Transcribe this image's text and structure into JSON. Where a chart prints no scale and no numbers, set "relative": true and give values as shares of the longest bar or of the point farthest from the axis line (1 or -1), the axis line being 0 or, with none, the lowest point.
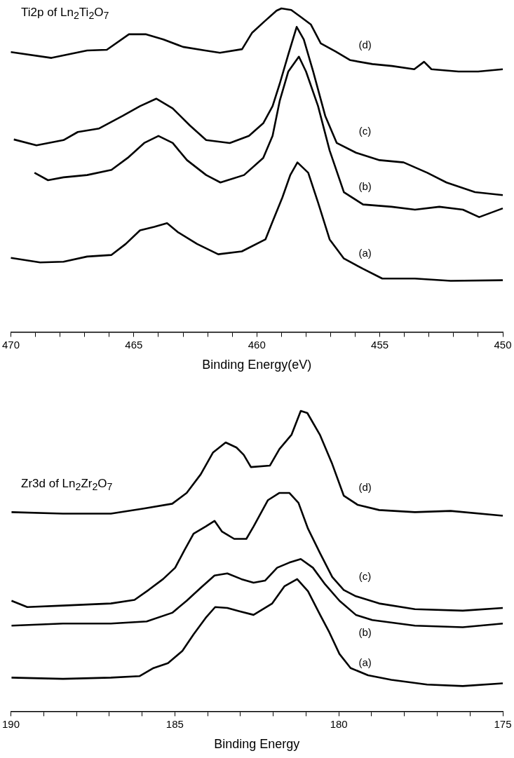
{
  "chart_data": [
    {
      "type": "line",
      "title": "Ti2p of Ln$_{2}$Ti$_{2}$O$_{7}$",
      "xlabel": "Binding Energy(eV)",
      "relative": true,
      "legend": false,
      "grid": false,
      "tick_labels": "x",
      "marker": "none",
      "line_style": "solid",
      "xlim": [
        470,
        450
      ],
      "xticks": [
        470,
        {
          "value": 469,
          "label": null
        },
        {
          "value": 468,
          "label": null
        },
        {
          "value": 467,
          "label": null
        },
        {
          "value": 466,
          "label": null
        },
        465,
        {
          "value": 464,
          "label": null
        },
        {
          "value": 463,
          "label": null
        },
        {
          "value": 462,
          "label": null
        },
        {
          "value": 461,
          "label": null
        },
        460,
        {
          "value": 459,
          "label": null
        },
        {
          "value": 458,
          "label": null
        },
        {
          "value": 457,
          "label": null
        },
        {
          "value": 456,
          "label": null
        },
        455,
        {
          "value": 454,
          "label": null
        },
        {
          "value": 453,
          "label": null
        },
        {
          "value": 452,
          "label": null
        },
        {
          "value": 451,
          "label": null
        },
        450
      ],
      "series": [
        {
          "name": "(d)",
          "color": "#000000",
          "x": [
            470,
            468.35,
            466.9,
            466.1,
            465.2,
            464.5,
            463.8,
            463.0,
            462.1,
            461.5,
            460.6,
            460.2,
            459.7,
            459.2,
            459.0,
            458.6,
            458.2,
            457.8,
            457.4,
            456.8,
            456.2,
            455.3,
            454.5,
            453.6,
            453.2,
            452.9,
            451.8,
            451.0,
            450.0
          ],
          "values": [
            0.865,
            0.847,
            0.87,
            0.872,
            0.92,
            0.92,
            0.904,
            0.881,
            0.87,
            0.863,
            0.874,
            0.924,
            0.959,
            0.993,
            1.0,
            0.995,
            0.973,
            0.95,
            0.892,
            0.867,
            0.84,
            0.828,
            0.822,
            0.812,
            0.835,
            0.812,
            0.805,
            0.805,
            0.812
          ]
        },
        {
          "name": "(c)",
          "color": "#000000",
          "x": [
            469.88,
            468.96,
            467.86,
            467.28,
            466.41,
            465.45,
            464.75,
            464.09,
            463.42,
            462.72,
            462.06,
            461.1,
            460.32,
            459.74,
            459.36,
            459.07,
            458.72,
            458.38,
            458.09,
            457.71,
            457.22,
            456.75,
            455.97,
            455.01,
            454.03,
            453.07,
            452.29,
            451.13,
            450.0
          ],
          "values": [
            0.595,
            0.577,
            0.593,
            0.618,
            0.629,
            0.668,
            0.698,
            0.721,
            0.691,
            0.638,
            0.593,
            0.584,
            0.606,
            0.645,
            0.698,
            0.767,
            0.858,
            0.943,
            0.904,
            0.805,
            0.668,
            0.584,
            0.554,
            0.531,
            0.524,
            0.492,
            0.462,
            0.432,
            0.423
          ]
        },
        {
          "name": "(b)",
          "color": "#000000",
          "x": [
            469.04,
            468.49,
            467.86,
            466.9,
            465.91,
            465.25,
            464.58,
            464.0,
            463.42,
            462.84,
            462.06,
            461.48,
            460.52,
            459.74,
            459.36,
            459.07,
            458.72,
            458.29,
            458.0,
            457.51,
            457.04,
            456.46,
            455.68,
            454.52,
            453.57,
            452.58,
            451.62,
            450.96,
            450.0
          ],
          "values": [
            0.492,
            0.469,
            0.478,
            0.485,
            0.501,
            0.538,
            0.584,
            0.606,
            0.584,
            0.531,
            0.485,
            0.462,
            0.485,
            0.538,
            0.606,
            0.714,
            0.805,
            0.851,
            0.805,
            0.698,
            0.561,
            0.432,
            0.394,
            0.387,
            0.378,
            0.387,
            0.378,
            0.355,
            0.382
          ]
        },
        {
          "name": "(a)",
          "color": "#000000",
          "x": [
            470,
            468.81,
            467.86,
            466.9,
            465.91,
            465.33,
            464.75,
            464.17,
            463.65,
            463.22,
            462.43,
            461.57,
            460.61,
            459.65,
            459.36,
            458.96,
            458.64,
            458.35,
            457.91,
            457.51,
            457.04,
            456.46,
            455.68,
            454.9,
            453.57,
            452.12,
            450.0
          ],
          "values": [
            0.229,
            0.215,
            0.217,
            0.233,
            0.238,
            0.272,
            0.314,
            0.325,
            0.336,
            0.309,
            0.272,
            0.24,
            0.249,
            0.286,
            0.341,
            0.416,
            0.485,
            0.524,
            0.492,
            0.4,
            0.286,
            0.227,
            0.195,
            0.165,
            0.165,
            0.158,
            0.16
          ]
        }
      ]
    },
    {
      "type": "line",
      "title": "Zr3d of Ln$_{2}$Zr$_{2}$O$_{7}$",
      "xlabel": "Binding Energy",
      "relative": true,
      "legend": false,
      "grid": false,
      "tick_labels": "x",
      "marker": "none",
      "line_style": "solid",
      "xlim": [
        190,
        175
      ],
      "xticks": [
        190,
        {
          "value": 189,
          "label": null
        },
        {
          "value": 188,
          "label": null
        },
        {
          "value": 187,
          "label": null
        },
        {
          "value": 186,
          "label": null
        },
        185,
        {
          "value": 184,
          "label": null
        },
        {
          "value": 183,
          "label": null
        },
        {
          "value": 182,
          "label": null
        },
        {
          "value": 181,
          "label": null
        },
        180,
        {
          "value": 179,
          "label": null
        },
        {
          "value": 178,
          "label": null
        },
        {
          "value": 177,
          "label": null
        },
        {
          "value": 176,
          "label": null
        },
        175
      ],
      "series": [
        {
          "name": "(d)",
          "color": "#000000",
          "x": [
            189.98,
            188.41,
            186.95,
            185.95,
            185.08,
            184.64,
            184.21,
            183.84,
            183.45,
            183.12,
            182.9,
            182.68,
            182.1,
            181.81,
            181.44,
            181.16,
            180.96,
            180.57,
            180.2,
            179.85,
            179.42,
            178.77,
            177.68,
            176.59,
            175.0
          ],
          "values": [
            0.663,
            0.658,
            0.658,
            0.675,
            0.691,
            0.727,
            0.789,
            0.861,
            0.895,
            0.878,
            0.854,
            0.813,
            0.818,
            0.873,
            0.921,
            1.0,
            0.993,
            0.919,
            0.823,
            0.718,
            0.687,
            0.67,
            0.663,
            0.667,
            0.651
          ]
        },
        {
          "name": "(c)",
          "color": "#000000",
          "x": [
            189.98,
            189.5,
            188.41,
            186.95,
            186.23,
            185.8,
            185.36,
            184.99,
            184.71,
            184.43,
            184.06,
            183.79,
            183.56,
            183.19,
            182.82,
            182.6,
            182.16,
            181.81,
            181.51,
            181.23,
            180.94,
            180.57,
            180.2,
            179.85,
            179.48,
            178.77,
            177.68,
            176.22,
            175.0
          ],
          "values": [
            0.368,
            0.347,
            0.352,
            0.359,
            0.371,
            0.404,
            0.44,
            0.478,
            0.536,
            0.591,
            0.615,
            0.634,
            0.598,
            0.574,
            0.574,
            0.615,
            0.703,
            0.727,
            0.727,
            0.694,
            0.608,
            0.526,
            0.447,
            0.404,
            0.383,
            0.359,
            0.34,
            0.335,
            0.344
          ]
        },
        {
          "name": "(b)",
          "color": "#000000",
          "x": [
            189.98,
            188.41,
            186.95,
            185.86,
            185.08,
            184.64,
            184.21,
            183.79,
            183.4,
            182.97,
            182.6,
            182.25,
            181.88,
            181.51,
            181.16,
            180.79,
            180.42,
            179.98,
            179.48,
            178.98,
            177.68,
            176.22,
            175.0
          ],
          "values": [
            0.285,
            0.292,
            0.292,
            0.299,
            0.328,
            0.368,
            0.411,
            0.452,
            0.459,
            0.44,
            0.428,
            0.435,
            0.478,
            0.495,
            0.507,
            0.478,
            0.423,
            0.368,
            0.321,
            0.304,
            0.285,
            0.28,
            0.292
          ]
        },
        {
          "name": "(a)",
          "color": "#000000",
          "x": [
            189.98,
            188.41,
            186.95,
            186.08,
            185.65,
            185.21,
            184.77,
            184.43,
            184.06,
            183.77,
            183.4,
            183.03,
            182.6,
            182.03,
            181.66,
            181.27,
            180.94,
            180.57,
            180.29,
            179.98,
            179.64,
            179.11,
            178.4,
            177.31,
            176.22,
            175.0
          ],
          "values": [
            0.112,
            0.108,
            0.112,
            0.117,
            0.144,
            0.16,
            0.201,
            0.256,
            0.311,
            0.347,
            0.344,
            0.333,
            0.321,
            0.359,
            0.416,
            0.44,
            0.4,
            0.321,
            0.263,
            0.191,
            0.144,
            0.12,
            0.105,
            0.089,
            0.084,
            0.093
          ]
        }
      ]
    }
  ]
}
